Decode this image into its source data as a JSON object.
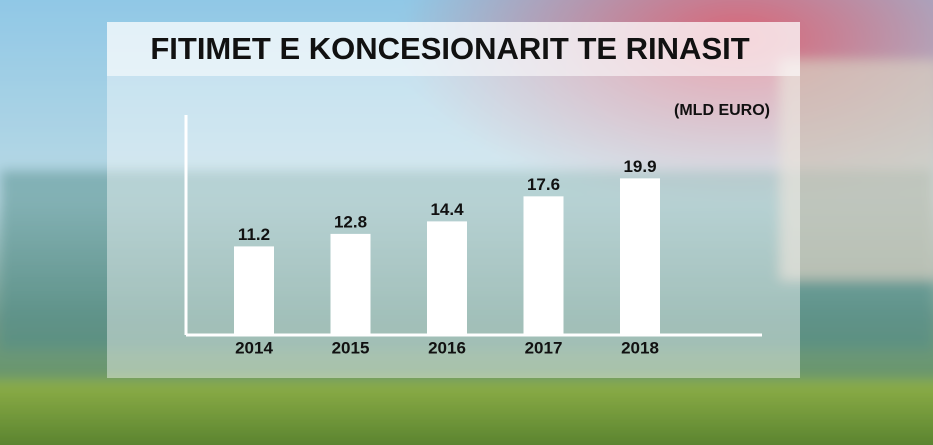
{
  "chart_data": {
    "type": "bar",
    "title": "FITIMET E KONCESIONARIT TE RINASIT",
    "unit_label": "(MLD EURO)",
    "categories": [
      "2014",
      "2015",
      "2016",
      "2017",
      "2018"
    ],
    "values": [
      11.2,
      12.8,
      14.4,
      17.6,
      19.9
    ],
    "color": "#ffffff",
    "ylim": [
      0,
      28
    ]
  }
}
